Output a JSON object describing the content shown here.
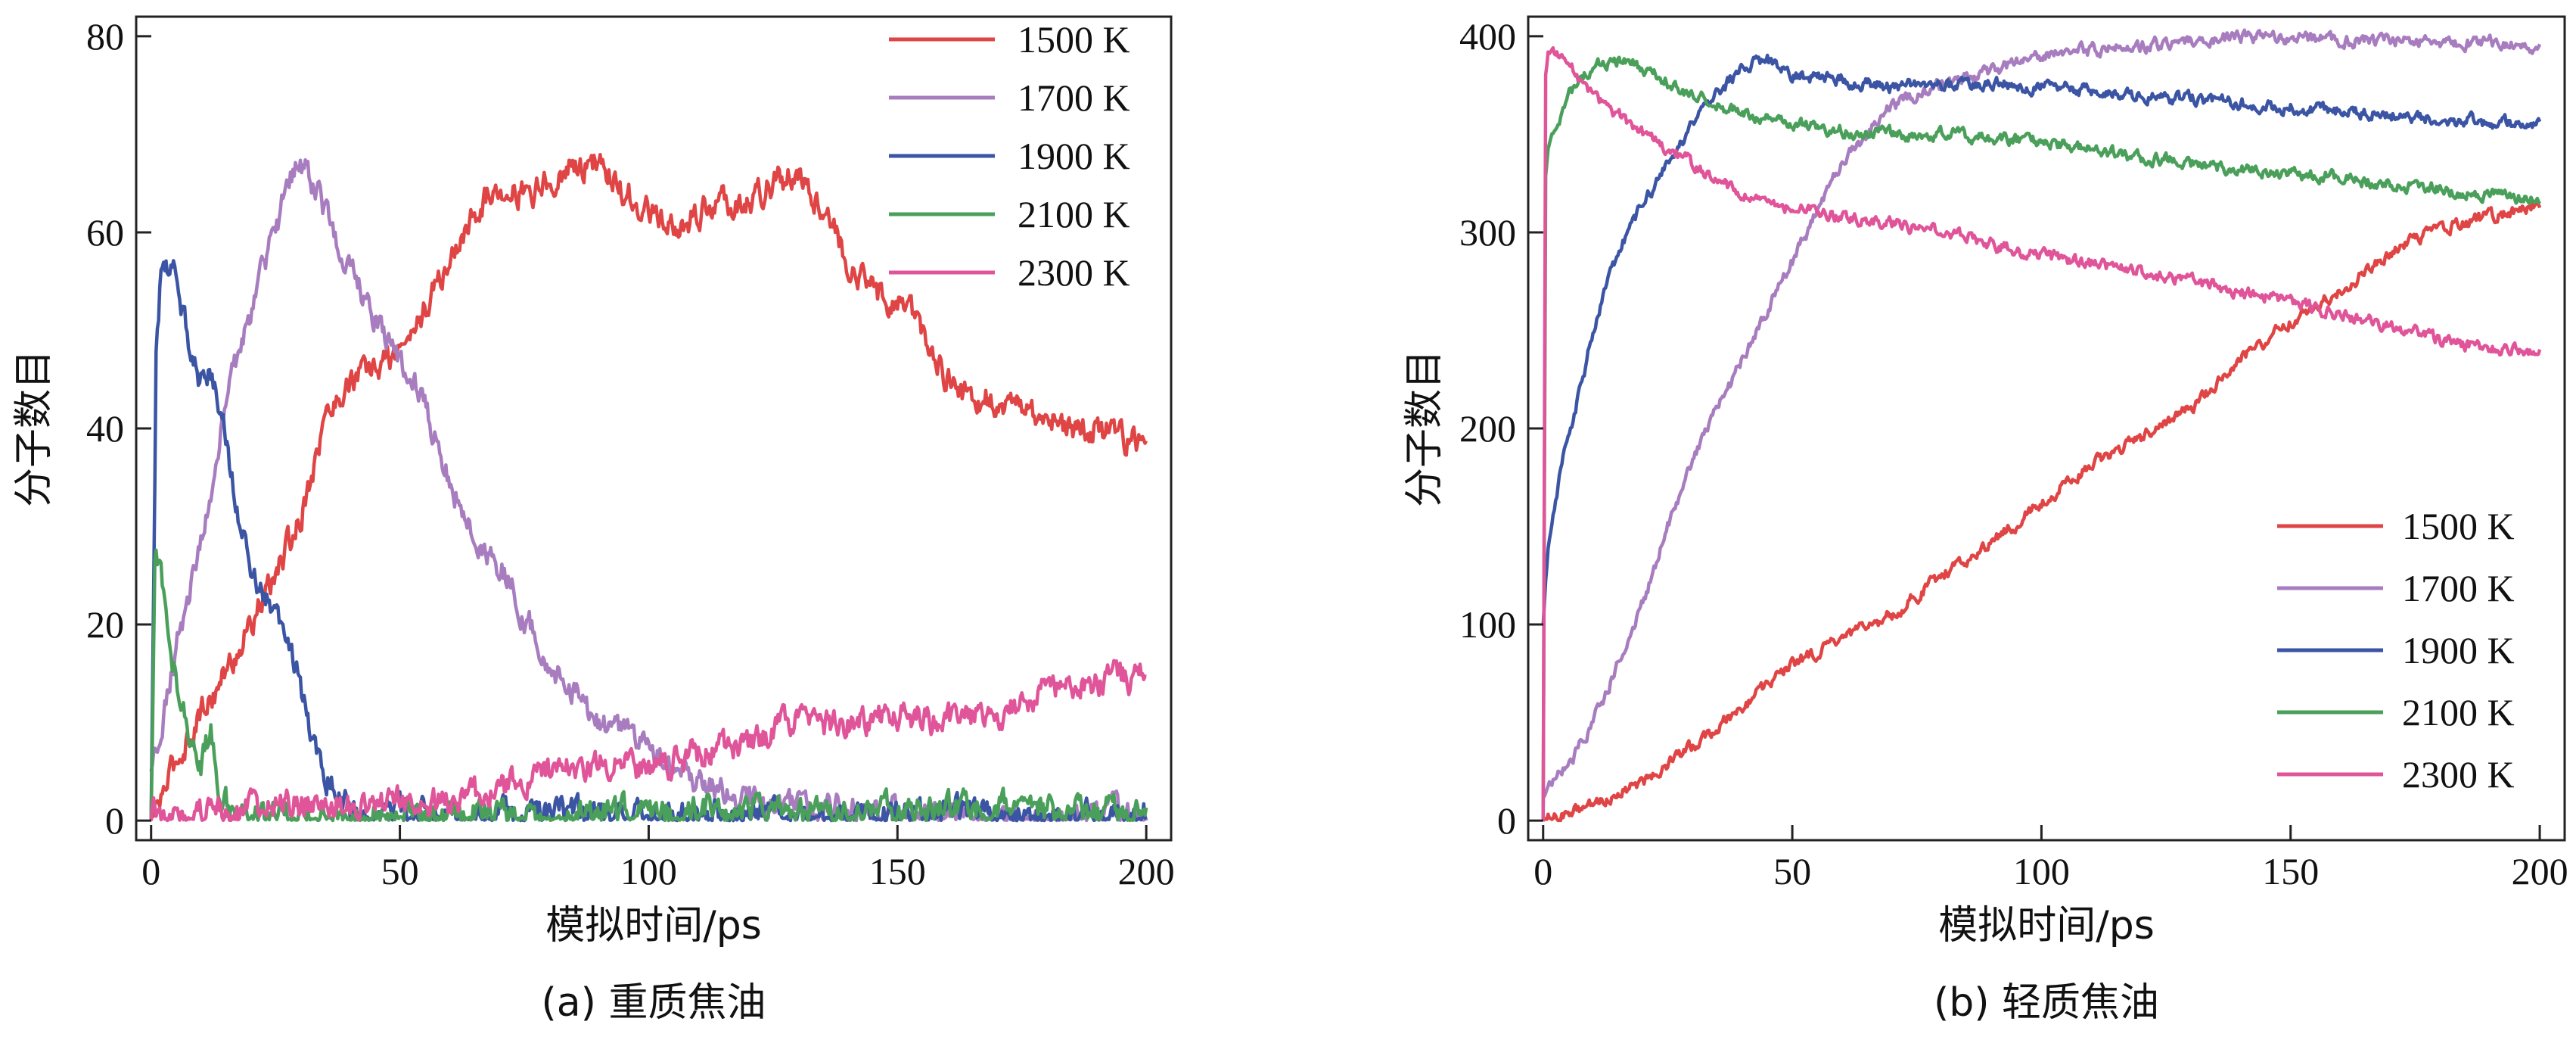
{
  "chart_data": [
    {
      "type": "line",
      "caption": "(a) 重质焦油",
      "xlabel": "模拟时间/ps",
      "ylabel": "分子数目",
      "xlim": [
        -3,
        205
      ],
      "ylim": [
        -2,
        82
      ],
      "xticks": [
        0,
        50,
        100,
        150,
        200
      ],
      "yticks": [
        0,
        20,
        40,
        60,
        80
      ],
      "legend": "top-right",
      "grid": false,
      "series": [
        {
          "name": "1500 K",
          "color": "#e04545",
          "x": [
            0,
            5,
            10,
            15,
            20,
            25,
            30,
            35,
            40,
            45,
            50,
            55,
            60,
            65,
            70,
            75,
            80,
            85,
            90,
            95,
            100,
            105,
            110,
            115,
            120,
            125,
            130,
            135,
            140,
            145,
            150,
            155,
            160,
            165,
            170,
            175,
            180,
            185,
            190,
            195,
            200
          ],
          "y": [
            0,
            6,
            11,
            15,
            20,
            25,
            31,
            41,
            45,
            46,
            48,
            52,
            57,
            62,
            65,
            64,
            65,
            67,
            67,
            64,
            62,
            60,
            62,
            63,
            63,
            65,
            66,
            63,
            57,
            54,
            53,
            50,
            45,
            43,
            43,
            42,
            41,
            40,
            40,
            39,
            38
          ]
        },
        {
          "name": "1700 K",
          "color": "#a87dbf",
          "x": [
            0,
            5,
            10,
            15,
            20,
            25,
            28,
            31,
            35,
            40,
            45,
            50,
            55,
            60,
            65,
            70,
            75,
            80,
            85,
            90,
            95,
            100,
            105,
            110,
            115,
            120,
            125,
            130,
            140,
            150,
            160,
            170,
            180,
            190,
            200
          ],
          "y": [
            5,
            18,
            28,
            42,
            52,
            60,
            66,
            67,
            62,
            56,
            51,
            47,
            42,
            35,
            29,
            26,
            21,
            16,
            13,
            10,
            9,
            7,
            6,
            4,
            3,
            2,
            1,
            1,
            1,
            1,
            0,
            1,
            0,
            1,
            0
          ]
        },
        {
          "name": "1900 K",
          "color": "#3b55a4",
          "x": [
            0,
            1,
            2,
            4,
            6,
            8,
            10,
            12,
            14,
            16,
            18,
            20,
            22,
            25,
            28,
            30,
            32,
            35,
            38,
            40,
            45,
            50,
            60,
            80,
            100,
            120,
            140,
            160,
            180,
            200
          ],
          "y": [
            0,
            48,
            56,
            57,
            53,
            48,
            45,
            46,
            42,
            36,
            30,
            26,
            24,
            20,
            18,
            14,
            9,
            5,
            2,
            1,
            0,
            1,
            0,
            1,
            0,
            1,
            0,
            1,
            0,
            1
          ]
        },
        {
          "name": "2100 K",
          "color": "#4aa05a",
          "x": [
            0,
            0.8,
            2,
            4,
            6,
            8,
            10,
            12,
            14,
            16,
            20,
            30,
            40,
            60,
            80,
            100,
            120,
            140,
            160,
            175,
            180,
            200
          ],
          "y": [
            0,
            28,
            25,
            17,
            12,
            8,
            6,
            9,
            3,
            1,
            0,
            1,
            0,
            1,
            0,
            1,
            1,
            1,
            1,
            2,
            1,
            1
          ]
        },
        {
          "name": "2300 K",
          "color": "#e0559a",
          "x": [
            0,
            1,
            3,
            10,
            20,
            30,
            40,
            50,
            60,
            70,
            80,
            90,
            100,
            110,
            120,
            130,
            140,
            150,
            160,
            170,
            180,
            190,
            200
          ],
          "y": [
            0,
            1,
            0,
            1,
            1,
            2,
            2,
            2,
            2,
            3,
            5,
            6,
            5,
            7,
            8,
            10,
            10,
            11,
            10,
            11,
            13,
            14,
            15
          ]
        }
      ]
    },
    {
      "type": "line",
      "caption": "(b) 轻质焦油",
      "xlabel": "模拟时间/ps",
      "ylabel": "分子数目",
      "xlim": [
        -3,
        205
      ],
      "ylim": [
        -10,
        410
      ],
      "xticks": [
        0,
        50,
        100,
        150,
        200
      ],
      "yticks": [
        0,
        100,
        200,
        300,
        400
      ],
      "legend": "bottom-right",
      "grid": false,
      "series": [
        {
          "name": "1500 K",
          "color": "#e04545",
          "x": [
            0,
            5,
            10,
            20,
            30,
            40,
            50,
            60,
            70,
            80,
            90,
            100,
            110,
            120,
            130,
            140,
            150,
            160,
            170,
            180,
            190,
            200
          ],
          "y": [
            0,
            4,
            8,
            20,
            38,
            58,
            80,
            92,
            105,
            125,
            142,
            162,
            182,
            195,
            210,
            235,
            255,
            270,
            290,
            302,
            308,
            315
          ]
        },
        {
          "name": "1700 K",
          "color": "#a87dbf",
          "x": [
            0,
            5,
            10,
            15,
            20,
            25,
            30,
            40,
            50,
            60,
            70,
            80,
            90,
            100,
            110,
            120,
            130,
            140,
            150,
            160,
            170,
            180,
            190,
            200
          ],
          "y": [
            15,
            28,
            50,
            80,
            110,
            150,
            185,
            235,
            285,
            335,
            365,
            375,
            382,
            390,
            393,
            395,
            398,
            399,
            399,
            398,
            398,
            397,
            397,
            395
          ]
        },
        {
          "name": "1900 K",
          "color": "#3b55a4",
          "x": [
            0,
            1,
            2,
            4,
            6,
            8,
            10,
            15,
            20,
            25,
            30,
            35,
            40,
            45,
            50,
            60,
            70,
            80,
            90,
            100,
            110,
            120,
            130,
            140,
            150,
            160,
            170,
            180,
            190,
            200
          ],
          "y": [
            100,
            140,
            160,
            185,
            205,
            225,
            250,
            290,
            315,
            335,
            355,
            370,
            385,
            388,
            380,
            378,
            374,
            375,
            376,
            374,
            372,
            370,
            368,
            366,
            364,
            362,
            360,
            358,
            356,
            355
          ]
        },
        {
          "name": "2100 K",
          "color": "#4aa05a",
          "x": [
            0,
            0.5,
            1,
            3,
            5,
            8,
            10,
            15,
            20,
            25,
            30,
            40,
            50,
            60,
            70,
            80,
            90,
            100,
            110,
            120,
            130,
            140,
            150,
            160,
            170,
            180,
            190,
            200
          ],
          "y": [
            0,
            330,
            340,
            355,
            370,
            380,
            385,
            388,
            384,
            377,
            370,
            360,
            355,
            352,
            350,
            350,
            348,
            346,
            342,
            338,
            335,
            332,
            330,
            328,
            325,
            322,
            318,
            318
          ]
        },
        {
          "name": "2300 K",
          "color": "#e0559a",
          "x": [
            0,
            0.5,
            1,
            3,
            5,
            10,
            15,
            20,
            30,
            40,
            50,
            60,
            70,
            80,
            90,
            100,
            110,
            120,
            130,
            140,
            150,
            160,
            170,
            180,
            190,
            200
          ],
          "y": [
            0,
            380,
            392,
            390,
            385,
            370,
            360,
            350,
            335,
            320,
            312,
            308,
            305,
            300,
            294,
            288,
            284,
            280,
            275,
            270,
            265,
            258,
            252,
            245,
            240,
            240
          ]
        }
      ]
    }
  ]
}
